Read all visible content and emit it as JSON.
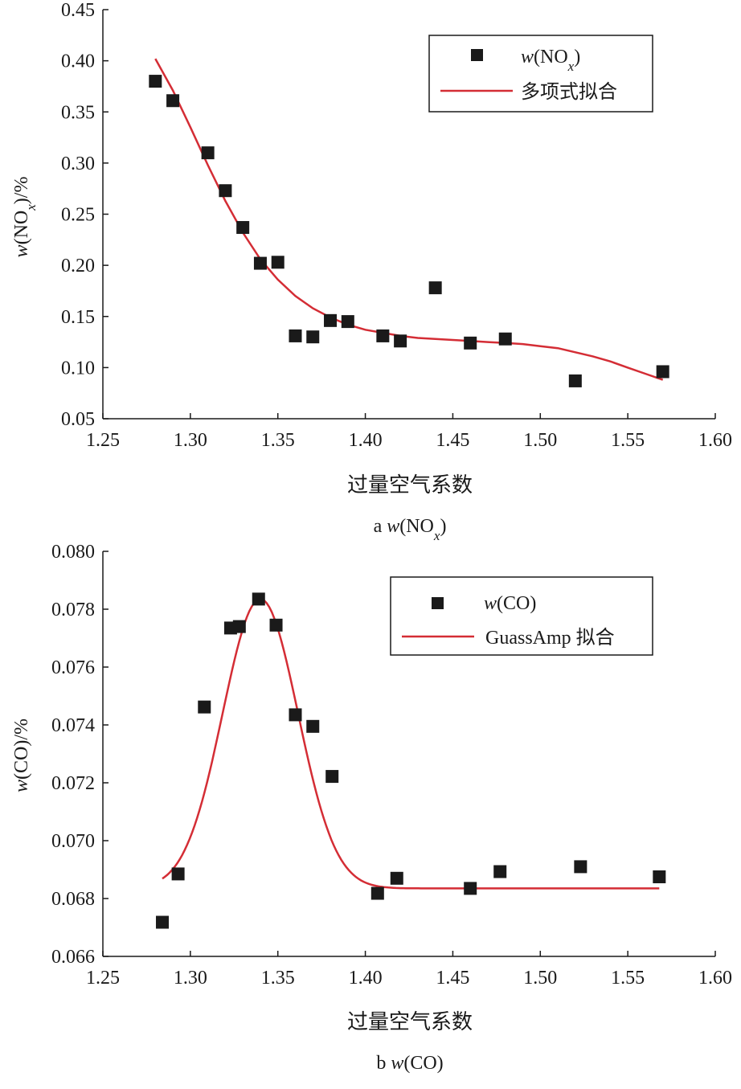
{
  "colors": {
    "fit_line": "#d42d35",
    "marker": "#1a1a1a",
    "axis": "#1a1a1a"
  },
  "chart_data": [
    {
      "type": "scatter",
      "caption": "a  w(NOx)",
      "xlabel": "过量空气系数",
      "ylabel": "w(NOx)/%",
      "xlim": [
        1.25,
        1.6
      ],
      "ylim": [
        0.05,
        0.45
      ],
      "x_ticks": [
        "1.25",
        "1.30",
        "1.35",
        "1.40",
        "1.45",
        "1.50",
        "1.55",
        "1.60"
      ],
      "y_ticks": [
        "0.05",
        "0.10",
        "0.15",
        "0.20",
        "0.25",
        "0.30",
        "0.35",
        "0.40",
        "0.45"
      ],
      "legend": {
        "position": "top-right",
        "marker_label": "w(NOx)",
        "line_label": "多项式拟合"
      },
      "series": [
        {
          "name": "w(NOx)",
          "kind": "markers",
          "points": [
            [
              1.28,
              0.38
            ],
            [
              1.29,
              0.361
            ],
            [
              1.31,
              0.31
            ],
            [
              1.32,
              0.273
            ],
            [
              1.33,
              0.237
            ],
            [
              1.34,
              0.202
            ],
            [
              1.35,
              0.203
            ],
            [
              1.36,
              0.131
            ],
            [
              1.37,
              0.13
            ],
            [
              1.38,
              0.146
            ],
            [
              1.39,
              0.145
            ],
            [
              1.41,
              0.131
            ],
            [
              1.42,
              0.126
            ],
            [
              1.44,
              0.178
            ],
            [
              1.46,
              0.124
            ],
            [
              1.48,
              0.128
            ],
            [
              1.52,
              0.087
            ],
            [
              1.57,
              0.096
            ]
          ]
        },
        {
          "name": "多项式拟合",
          "kind": "line",
          "points": [
            [
              1.28,
              0.402
            ],
            [
              1.29,
              0.371
            ],
            [
              1.3,
              0.335
            ],
            [
              1.31,
              0.298
            ],
            [
              1.32,
              0.263
            ],
            [
              1.33,
              0.232
            ],
            [
              1.34,
              0.206
            ],
            [
              1.35,
              0.186
            ],
            [
              1.36,
              0.17
            ],
            [
              1.37,
              0.158
            ],
            [
              1.38,
              0.149
            ],
            [
              1.39,
              0.142
            ],
            [
              1.4,
              0.137
            ],
            [
              1.41,
              0.134
            ],
            [
              1.42,
              0.131
            ],
            [
              1.43,
              0.129
            ],
            [
              1.44,
              0.128
            ],
            [
              1.45,
              0.127
            ],
            [
              1.46,
              0.126
            ],
            [
              1.47,
              0.125
            ],
            [
              1.48,
              0.124
            ],
            [
              1.49,
              0.123
            ],
            [
              1.5,
              0.121
            ],
            [
              1.51,
              0.119
            ],
            [
              1.52,
              0.115
            ],
            [
              1.53,
              0.111
            ],
            [
              1.54,
              0.106
            ],
            [
              1.55,
              0.1
            ],
            [
              1.56,
              0.094
            ],
            [
              1.57,
              0.088
            ]
          ]
        }
      ]
    },
    {
      "type": "scatter",
      "caption": "b  w(CO)",
      "xlabel": "过量空气系数",
      "ylabel": "w(CO)/%",
      "xlim": [
        1.25,
        1.6
      ],
      "ylim": [
        0.066,
        0.08
      ],
      "x_ticks": [
        "1.25",
        "1.30",
        "1.35",
        "1.40",
        "1.45",
        "1.50",
        "1.55",
        "1.60"
      ],
      "y_ticks": [
        "0.066",
        "0.068",
        "0.070",
        "0.072",
        "0.074",
        "0.076",
        "0.078",
        "0.080"
      ],
      "legend": {
        "position": "top-right",
        "marker_label": "w(CO)",
        "line_label": "GuassAmp 拟合"
      },
      "series": [
        {
          "name": "w(CO)",
          "kind": "markers",
          "points": [
            [
              1.284,
              0.06718
            ],
            [
              1.293,
              0.06885
            ],
            [
              1.308,
              0.07462
            ],
            [
              1.323,
              0.07735
            ],
            [
              1.328,
              0.0774
            ],
            [
              1.339,
              0.07835
            ],
            [
              1.349,
              0.07745
            ],
            [
              1.36,
              0.07435
            ],
            [
              1.37,
              0.07395
            ],
            [
              1.381,
              0.07222
            ],
            [
              1.407,
              0.06818
            ],
            [
              1.418,
              0.0687
            ],
            [
              1.46,
              0.06835
            ],
            [
              1.477,
              0.06893
            ],
            [
              1.523,
              0.0691
            ],
            [
              1.568,
              0.06875
            ]
          ]
        },
        {
          "name": "GuassAmp 拟合",
          "kind": "gauss",
          "params": {
            "y0": 0.06835,
            "A": 0.01,
            "xc": 1.34,
            "w": 0.0215
          },
          "x_range": [
            1.284,
            1.568
          ]
        }
      ]
    }
  ]
}
